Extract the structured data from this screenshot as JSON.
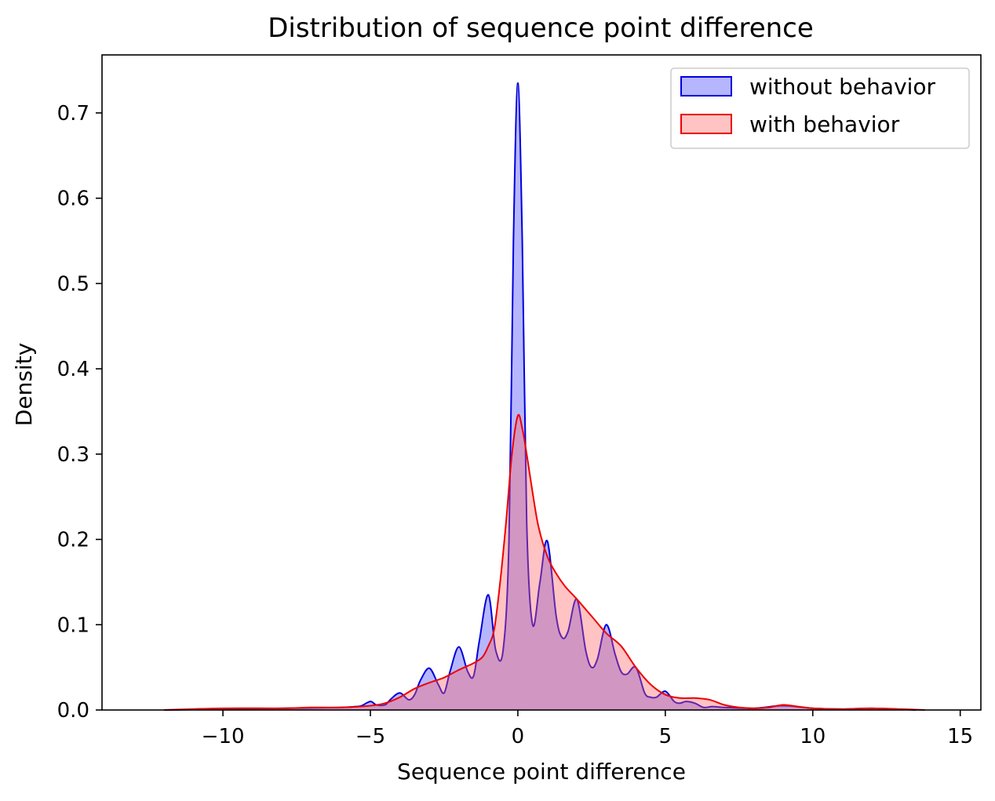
{
  "chart_data": {
    "type": "area",
    "title": "Distribution of sequence point difference",
    "xlabel": "Sequence point difference",
    "ylabel": "Density",
    "xlim": [
      -14.1,
      15.7
    ],
    "ylim": [
      0,
      0.768
    ],
    "xticks": [
      -10,
      -5,
      0,
      5,
      10,
      15
    ],
    "xtick_labels": [
      "−10",
      "−5",
      "0",
      "5",
      "10",
      "15"
    ],
    "yticks": [
      0.0,
      0.1,
      0.2,
      0.3,
      0.4,
      0.5,
      0.6,
      0.7
    ],
    "ytick_labels": [
      "0.0",
      "0.1",
      "0.2",
      "0.3",
      "0.4",
      "0.5",
      "0.6",
      "0.7"
    ],
    "grid": false,
    "legend_position": "top-right",
    "series": [
      {
        "name": "without behavior",
        "color": "#0000dd",
        "fill": "#4040ff",
        "x": [
          -12,
          -10,
          -8,
          -6,
          -5.5,
          -5.3,
          -5.0,
          -4.8,
          -4.5,
          -4.3,
          -4.0,
          -3.7,
          -3.5,
          -3.3,
          -3.0,
          -2.7,
          -2.5,
          -2.3,
          -2.0,
          -1.7,
          -1.5,
          -1.3,
          -1.0,
          -0.75,
          -0.5,
          -0.3,
          -0.15,
          0.0,
          0.15,
          0.3,
          0.5,
          0.75,
          1.0,
          1.3,
          1.5,
          1.7,
          2.0,
          2.3,
          2.5,
          2.7,
          3.0,
          3.3,
          3.5,
          3.7,
          4.0,
          4.3,
          4.5,
          4.7,
          5.0,
          5.3,
          5.5,
          5.7,
          6.0,
          6.3,
          6.6,
          7,
          8,
          9,
          10,
          11,
          12,
          13.5
        ],
        "y": [
          0.0,
          0.001,
          0.002,
          0.003,
          0.004,
          0.005,
          0.01,
          0.006,
          0.006,
          0.013,
          0.02,
          0.012,
          0.018,
          0.035,
          0.049,
          0.03,
          0.02,
          0.045,
          0.074,
          0.045,
          0.04,
          0.082,
          0.135,
          0.07,
          0.07,
          0.2,
          0.55,
          0.735,
          0.55,
          0.22,
          0.1,
          0.15,
          0.198,
          0.11,
          0.085,
          0.092,
          0.13,
          0.07,
          0.05,
          0.06,
          0.1,
          0.065,
          0.045,
          0.042,
          0.05,
          0.02,
          0.015,
          0.015,
          0.022,
          0.01,
          0.008,
          0.01,
          0.008,
          0.003,
          0.004,
          0.003,
          0.002,
          0.005,
          0.002,
          0.001,
          0.002,
          0.0
        ]
      },
      {
        "name": "with behavior",
        "color": "#ee0000",
        "fill": "#ff6060",
        "x": [
          -12,
          -10,
          -8,
          -7,
          -6,
          -5,
          -4.5,
          -4,
          -3.5,
          -3,
          -2.5,
          -2,
          -1.5,
          -1.2,
          -1.0,
          -0.8,
          -0.6,
          -0.4,
          -0.2,
          0.0,
          0.15,
          0.3,
          0.5,
          0.7,
          1.0,
          1.3,
          1.6,
          2.0,
          2.5,
          3.0,
          3.5,
          4.0,
          4.5,
          5.0,
          5.5,
          6.0,
          6.5,
          7.0,
          7.5,
          8.0,
          8.5,
          9.0,
          9.5,
          10.0,
          11,
          12,
          13,
          13.8
        ],
        "y": [
          0.0,
          0.002,
          0.002,
          0.003,
          0.003,
          0.005,
          0.008,
          0.015,
          0.025,
          0.032,
          0.038,
          0.047,
          0.055,
          0.062,
          0.075,
          0.095,
          0.15,
          0.22,
          0.3,
          0.345,
          0.33,
          0.3,
          0.255,
          0.215,
          0.18,
          0.16,
          0.145,
          0.13,
          0.11,
          0.09,
          0.075,
          0.05,
          0.03,
          0.018,
          0.014,
          0.014,
          0.012,
          0.006,
          0.003,
          0.002,
          0.003,
          0.006,
          0.004,
          0.002,
          0.001,
          0.002,
          0.001,
          0.0
        ]
      }
    ]
  }
}
